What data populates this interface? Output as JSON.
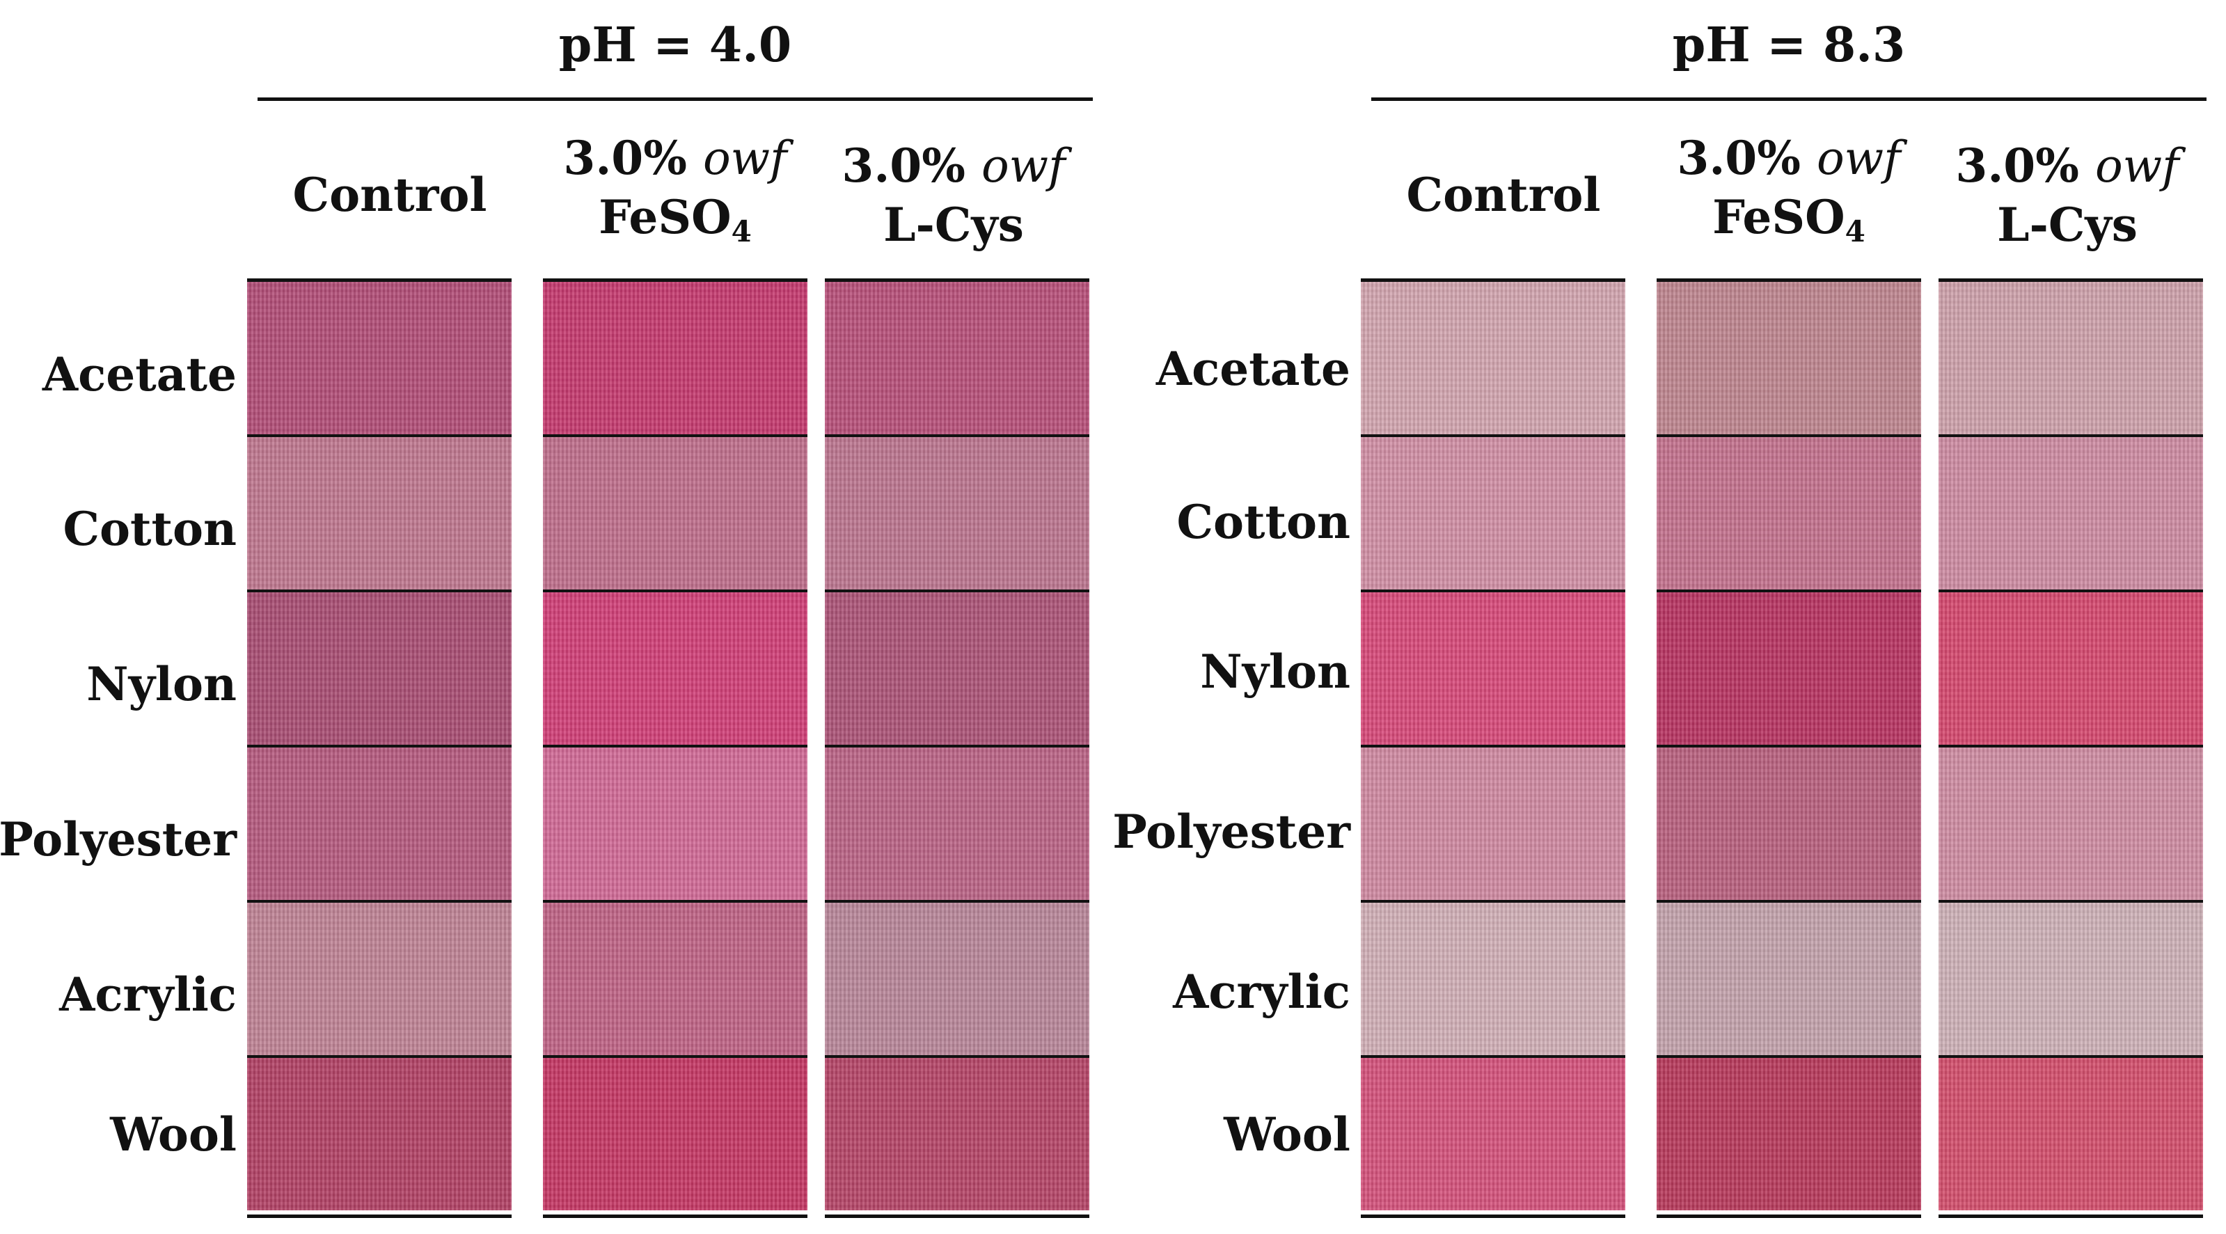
{
  "panels": [
    {
      "ph_label": "pH = 4.0",
      "columns": [
        {
          "line1": "Control",
          "line2_text": "",
          "line2_sub": ""
        },
        {
          "line1": "3.0%",
          "owf": "owf",
          "line2_text": "FeSO",
          "line2_sub": "4"
        },
        {
          "line1": "3.0%",
          "owf": "owf",
          "line2_text": "L-Cys",
          "line2_sub": ""
        }
      ],
      "rows": [
        "Acetate",
        "Cotton",
        "Nylon",
        "Polyester",
        "Acrylic",
        "Wool"
      ],
      "swatch_colors": [
        [
          "#b34e78",
          "#c63a6f",
          "#b8507a"
        ],
        [
          "#c07890",
          "#c06f8c",
          "#bd7690"
        ],
        [
          "#aa4e74",
          "#d23f78",
          "#ad5478"
        ],
        [
          "#b65b80",
          "#d26a97",
          "#bb6486"
        ],
        [
          "#c08496",
          "#c06486",
          "#b9879a"
        ],
        [
          "#b34266",
          "#c63865",
          "#b64668"
        ]
      ]
    },
    {
      "ph_label": "pH = 8.3",
      "columns": [
        {
          "line1": "Control",
          "line2_text": "",
          "line2_sub": ""
        },
        {
          "line1": "3.0%",
          "owf": "owf",
          "line2_text": "FeSO",
          "line2_sub": "4"
        },
        {
          "line1": "3.0%",
          "owf": "owf",
          "line2_text": "L-Cys",
          "line2_sub": ""
        }
      ],
      "rows": [
        "Acetate",
        "Cotton",
        "Nylon",
        "Polyester",
        "Acrylic",
        "Wool"
      ],
      "swatch_colors": [
        [
          "#d3a6b0",
          "#bf8690",
          "#cfa2ac"
        ],
        [
          "#d290a6",
          "#c4728e",
          "#cf8ca3"
        ],
        [
          "#d84a7a",
          "#b83462",
          "#d6496f"
        ],
        [
          "#d18aa2",
          "#b9617f",
          "#d08da3"
        ],
        [
          "#d2b0b7",
          "#c4a3ad",
          "#cfb2b8"
        ],
        [
          "#d5527c",
          "#b83a5c",
          "#d44f6d"
        ]
      ]
    }
  ]
}
